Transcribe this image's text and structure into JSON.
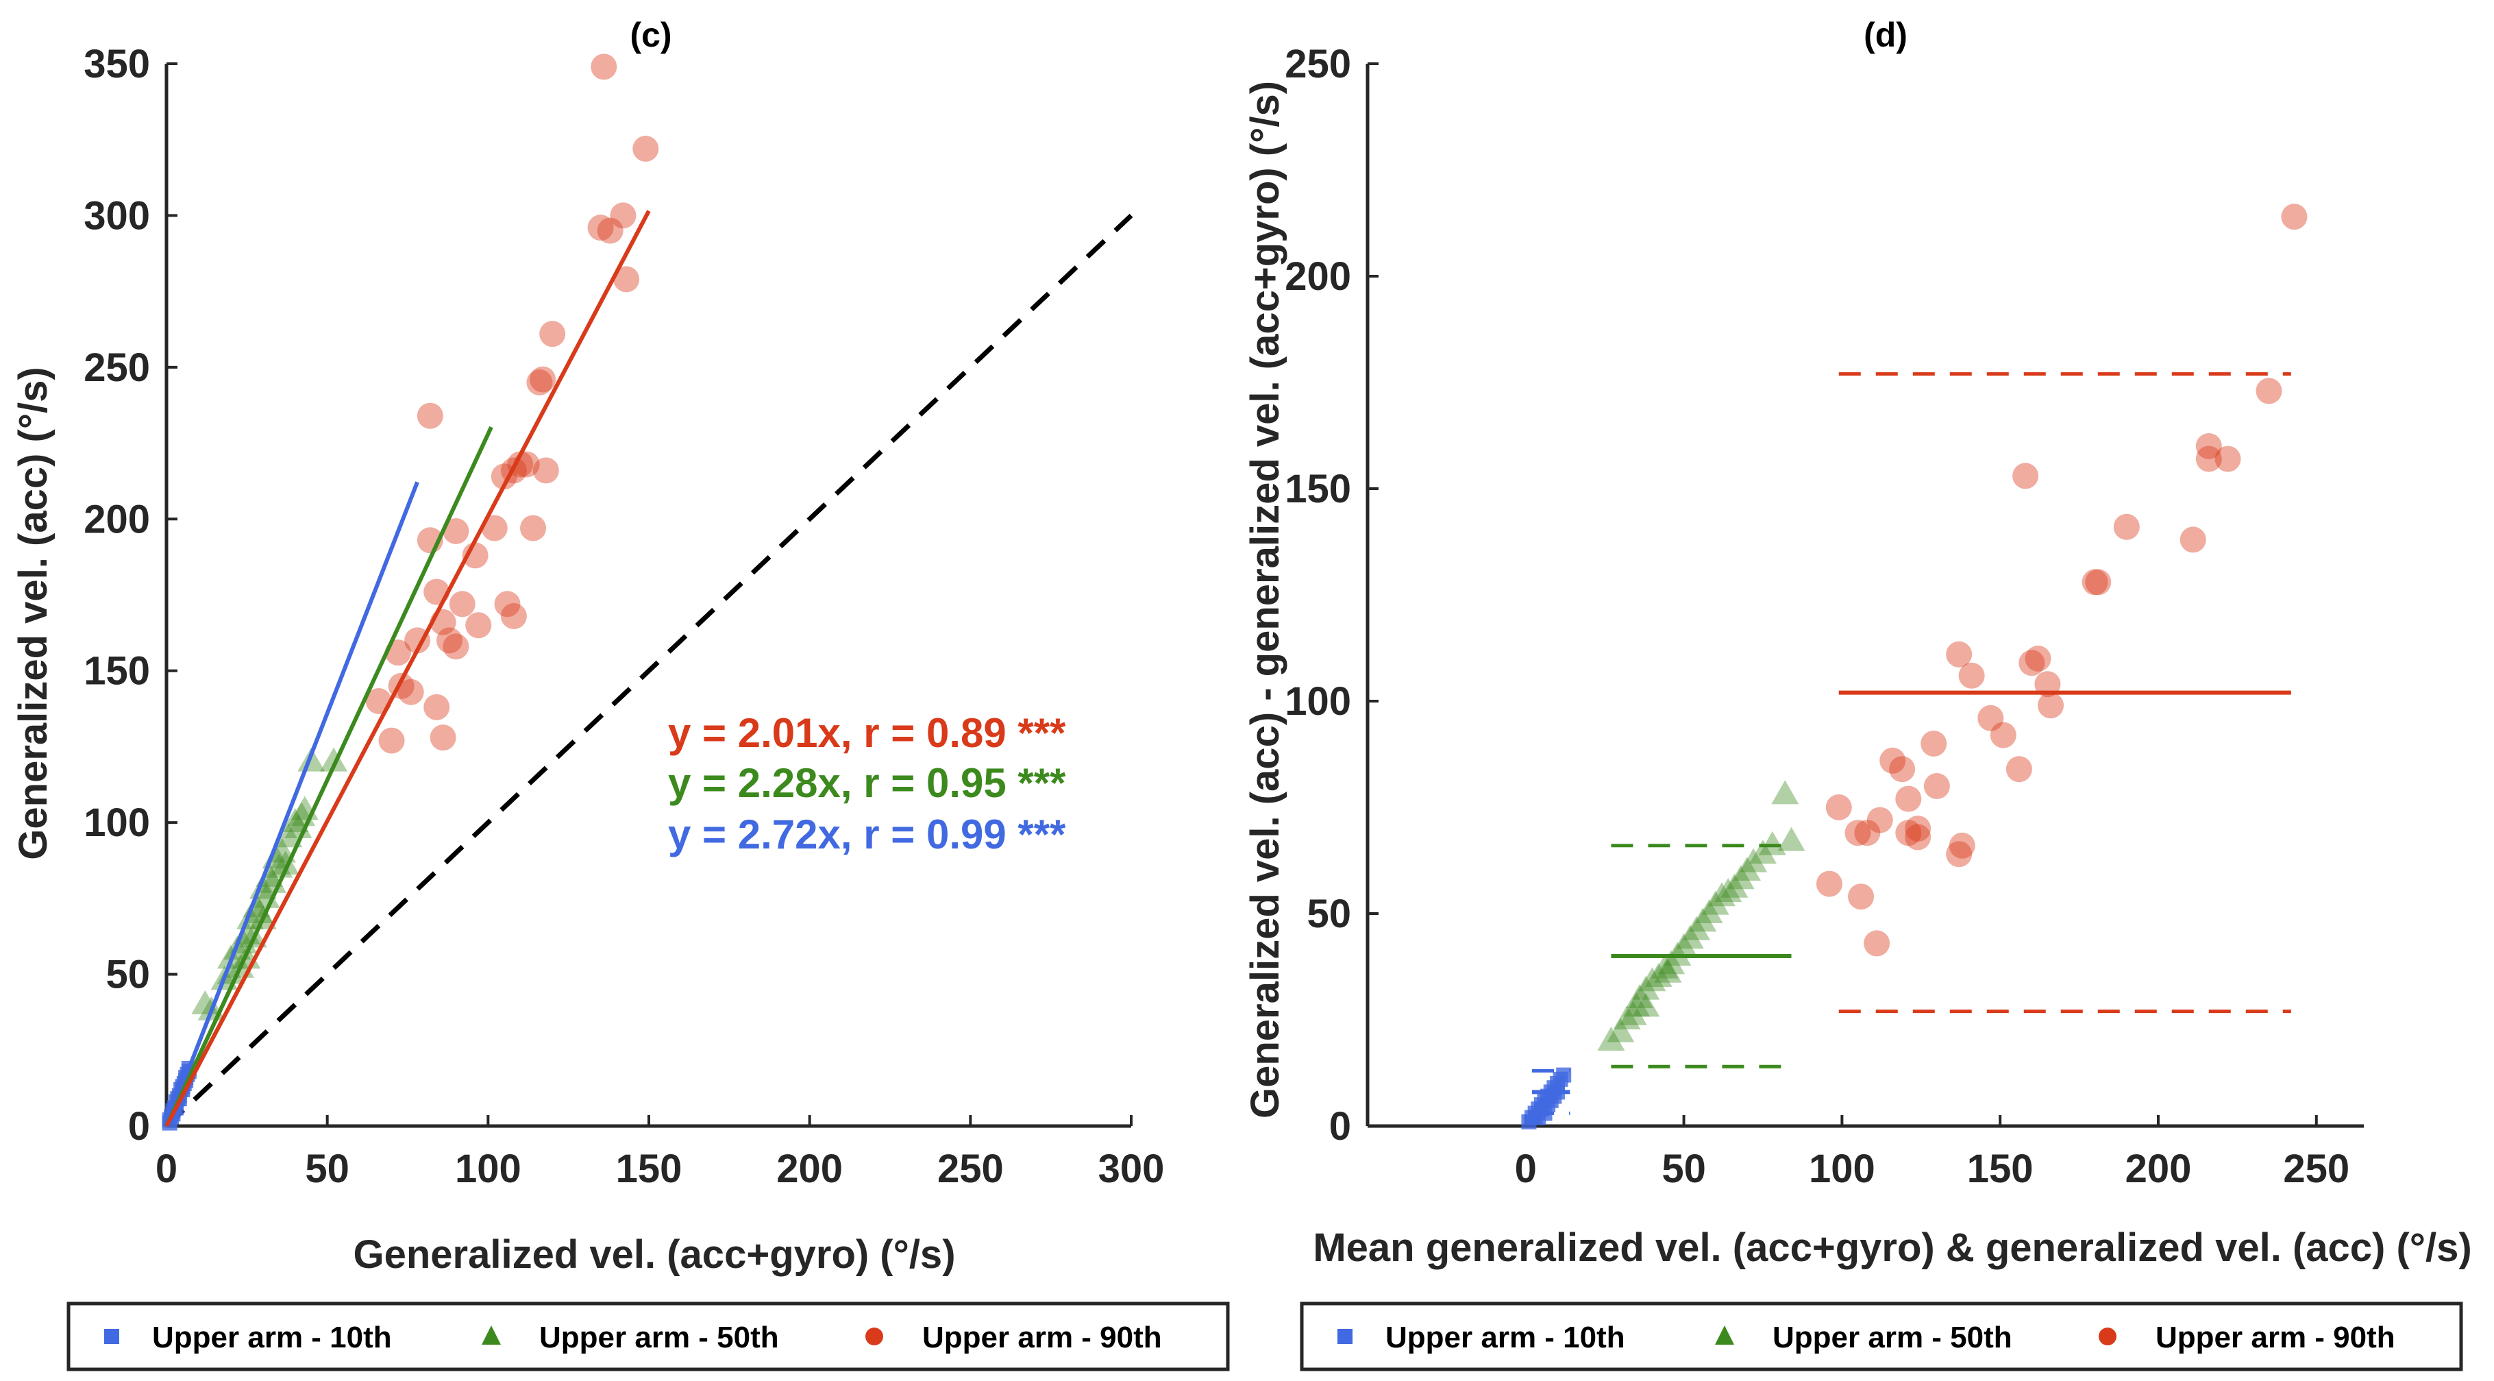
{
  "chart_data": [
    {
      "type": "scatter",
      "panel_label": "(c)",
      "xlabel": "Generalized vel. (acc+gyro) (°/s)",
      "ylabel": "Generalized vel. (acc) (°/s)",
      "xlim": [
        0,
        300
      ],
      "ylim": [
        0,
        350
      ],
      "xticks": [
        0,
        50,
        100,
        150,
        200,
        250,
        300
      ],
      "yticks": [
        0,
        50,
        100,
        150,
        200,
        250,
        300,
        350
      ],
      "xtick_labels": [
        "0",
        "50",
        "100",
        "150",
        "200",
        "250",
        "300"
      ],
      "ytick_labels": [
        "0",
        "50",
        "100",
        "150",
        "200",
        "250",
        "300",
        "350"
      ],
      "identity_line": {
        "x": [
          0,
          300
        ],
        "y": [
          0,
          300
        ],
        "style": "dashed",
        "color": "#000000"
      },
      "series": [
        {
          "name": "Upper arm - 10th",
          "color": "#4169E1",
          "marker": "square",
          "fit": {
            "slope": 2.72,
            "r": 0.99,
            "x_range": [
              0,
              78
            ],
            "label": "y = 2.72x, r = 0.99",
            "significance": "***"
          },
          "points": [
            [
              1,
              2
            ],
            [
              1.5,
              3
            ],
            [
              2,
              5
            ],
            [
              2.5,
              6
            ],
            [
              3,
              8
            ],
            [
              3.5,
              9
            ],
            [
              4,
              10
            ],
            [
              4.5,
              12
            ],
            [
              5,
              13
            ],
            [
              5.5,
              14
            ],
            [
              6,
              16
            ],
            [
              6.5,
              17
            ],
            [
              7,
              19
            ],
            [
              3,
              6
            ],
            [
              4,
              9
            ],
            [
              5,
              12
            ],
            [
              2,
              4
            ],
            [
              6,
              15
            ],
            [
              1,
              1
            ],
            [
              7,
              18
            ]
          ]
        },
        {
          "name": "Upper arm - 50th",
          "color": "#3C8A1E",
          "marker": "triangle",
          "fit": {
            "slope": 2.28,
            "r": 0.95,
            "x_range": [
              0,
              101
            ],
            "label": "y = 2.28x, r = 0.95",
            "significance": "***"
          },
          "points": [
            [
              12,
              40
            ],
            [
              14,
              38
            ],
            [
              18,
              48
            ],
            [
              20,
              55
            ],
            [
              22,
              58
            ],
            [
              24,
              60
            ],
            [
              25,
              63
            ],
            [
              26,
              68
            ],
            [
              28,
              72
            ],
            [
              29,
              70
            ],
            [
              30,
              78
            ],
            [
              31,
              75
            ],
            [
              32,
              82
            ],
            [
              33,
              80
            ],
            [
              34,
              88
            ],
            [
              36,
              90
            ],
            [
              37,
              86
            ],
            [
              38,
              95
            ],
            [
              40,
              100
            ],
            [
              41,
              98
            ],
            [
              43,
              104
            ],
            [
              45,
              120
            ],
            [
              52,
              120
            ],
            [
              25,
              55
            ],
            [
              27,
              62
            ],
            [
              35,
              85
            ],
            [
              30,
              68
            ],
            [
              42,
              102
            ],
            [
              23,
              52
            ],
            [
              20,
              50
            ]
          ]
        },
        {
          "name": "Upper arm - 90th",
          "color": "#D93A1A",
          "marker": "circle",
          "fit": {
            "slope": 2.01,
            "r": 0.89,
            "x_range": [
              0,
              150
            ],
            "label": "y = 2.01x, r = 0.89",
            "significance": "***"
          },
          "points": [
            [
              136,
              349
            ],
            [
              149,
              322
            ],
            [
              142,
              300
            ],
            [
              138,
              295
            ],
            [
              135,
              296
            ],
            [
              143,
              279
            ],
            [
              82,
              234
            ],
            [
              120,
              261
            ],
            [
              117,
              246
            ],
            [
              116,
              245
            ],
            [
              112,
              218
            ],
            [
              118,
              216
            ],
            [
              108,
              216
            ],
            [
              110,
              218
            ],
            [
              105,
              214
            ],
            [
              102,
              197
            ],
            [
              114,
              197
            ],
            [
              90,
              196
            ],
            [
              82,
              193
            ],
            [
              96,
              188
            ],
            [
              92,
              172
            ],
            [
              106,
              172
            ],
            [
              108,
              168
            ],
            [
              86,
              166
            ],
            [
              84,
              176
            ],
            [
              97,
              165
            ],
            [
              88,
              160
            ],
            [
              90,
              158
            ],
            [
              78,
              160
            ],
            [
              72,
              156
            ],
            [
              73,
              145
            ],
            [
              76,
              143
            ],
            [
              84,
              138
            ],
            [
              70,
              127
            ],
            [
              86,
              128
            ],
            [
              66,
              140
            ]
          ]
        }
      ],
      "legend": {
        "placement": "bottom",
        "entries": [
          "Upper arm - 10th",
          "Upper arm - 50th",
          "Upper arm - 90th"
        ]
      }
    },
    {
      "type": "scatter",
      "panel_label": "(d)",
      "xlabel": "Mean generalized vel. (acc+gyro) & generalized vel. (acc) (°/s)",
      "ylabel": "Generalized vel. (acc) - generalized vel. (acc+gyro) (°/s)",
      "xlim": [
        -50,
        265
      ],
      "ylim": [
        0,
        250
      ],
      "xticks": [
        0,
        50,
        100,
        150,
        200,
        250
      ],
      "yticks": [
        0,
        50,
        100,
        150,
        200,
        250
      ],
      "xtick_labels": [
        "0",
        "50",
        "100",
        "150",
        "200",
        "250"
      ],
      "ytick_labels": [
        "0",
        "50",
        "100",
        "150",
        "200",
        "250"
      ],
      "series": [
        {
          "name": "Upper arm - 10th",
          "color": "#4169E1",
          "marker": "square",
          "mean": 8,
          "loa": [
            3,
            13
          ],
          "line_x_range": [
            2,
            14
          ],
          "points": [
            [
              1,
              1
            ],
            [
              2,
              2
            ],
            [
              3,
              3
            ],
            [
              4,
              4
            ],
            [
              5,
              5
            ],
            [
              6,
              6
            ],
            [
              7,
              7
            ],
            [
              8,
              8
            ],
            [
              9,
              9
            ],
            [
              10,
              10
            ],
            [
              11,
              11
            ],
            [
              12,
              12
            ],
            [
              3,
              2
            ],
            [
              5,
              4
            ],
            [
              7,
              5
            ],
            [
              9,
              7
            ],
            [
              4,
              2
            ],
            [
              6,
              3
            ],
            [
              8,
              6
            ],
            [
              10,
              8
            ]
          ]
        },
        {
          "name": "Upper arm - 50th",
          "color": "#3C8A1E",
          "marker": "triangle",
          "mean": 40,
          "loa": [
            14,
            66
          ],
          "line_x_range": [
            27,
            84
          ],
          "points": [
            [
              27,
              20
            ],
            [
              30,
              22
            ],
            [
              32,
              25
            ],
            [
              34,
              26
            ],
            [
              35,
              28
            ],
            [
              36,
              30
            ],
            [
              38,
              32
            ],
            [
              40,
              34
            ],
            [
              42,
              35
            ],
            [
              44,
              37
            ],
            [
              46,
              38
            ],
            [
              48,
              40
            ],
            [
              50,
              42
            ],
            [
              52,
              44
            ],
            [
              54,
              46
            ],
            [
              56,
              48
            ],
            [
              58,
              50
            ],
            [
              60,
              52
            ],
            [
              62,
              54
            ],
            [
              64,
              55
            ],
            [
              66,
              56
            ],
            [
              68,
              58
            ],
            [
              70,
              60
            ],
            [
              72,
              62
            ],
            [
              75,
              64
            ],
            [
              78,
              66
            ],
            [
              82,
              78
            ],
            [
              84,
              67
            ],
            [
              38,
              28
            ],
            [
              45,
              36
            ]
          ]
        },
        {
          "name": "Upper arm - 90th",
          "color": "#D93A1A",
          "marker": "circle",
          "mean": 102,
          "loa": [
            27,
            177
          ],
          "line_x_range": [
            99,
            242
          ],
          "points": [
            [
              243,
              214
            ],
            [
              235,
              173
            ],
            [
              216,
              160
            ],
            [
              222,
              157
            ],
            [
              216,
              157
            ],
            [
              211,
              138
            ],
            [
              190,
              141
            ],
            [
              181,
              128
            ],
            [
              180,
              128
            ],
            [
              158,
              153
            ],
            [
              162,
              110
            ],
            [
              160,
              109
            ],
            [
              165,
              104
            ],
            [
              166,
              99
            ],
            [
              137,
              111
            ],
            [
              141,
              106
            ],
            [
              147,
              96
            ],
            [
              151,
              92
            ],
            [
              129,
              90
            ],
            [
              116,
              86
            ],
            [
              119,
              84
            ],
            [
              130,
              80
            ],
            [
              121,
              77
            ],
            [
              112,
              72
            ],
            [
              108,
              69
            ],
            [
              121,
              69
            ],
            [
              124,
              68
            ],
            [
              124,
              70
            ],
            [
              99,
              75
            ],
            [
              105,
              69
            ],
            [
              137,
              64
            ],
            [
              138,
              66
            ],
            [
              156,
              84
            ],
            [
              96,
              57
            ],
            [
              106,
              54
            ],
            [
              111,
              43
            ]
          ]
        }
      ],
      "legend": {
        "placement": "bottom",
        "entries": [
          "Upper arm - 10th",
          "Upper arm - 50th",
          "Upper arm - 90th"
        ]
      }
    }
  ]
}
